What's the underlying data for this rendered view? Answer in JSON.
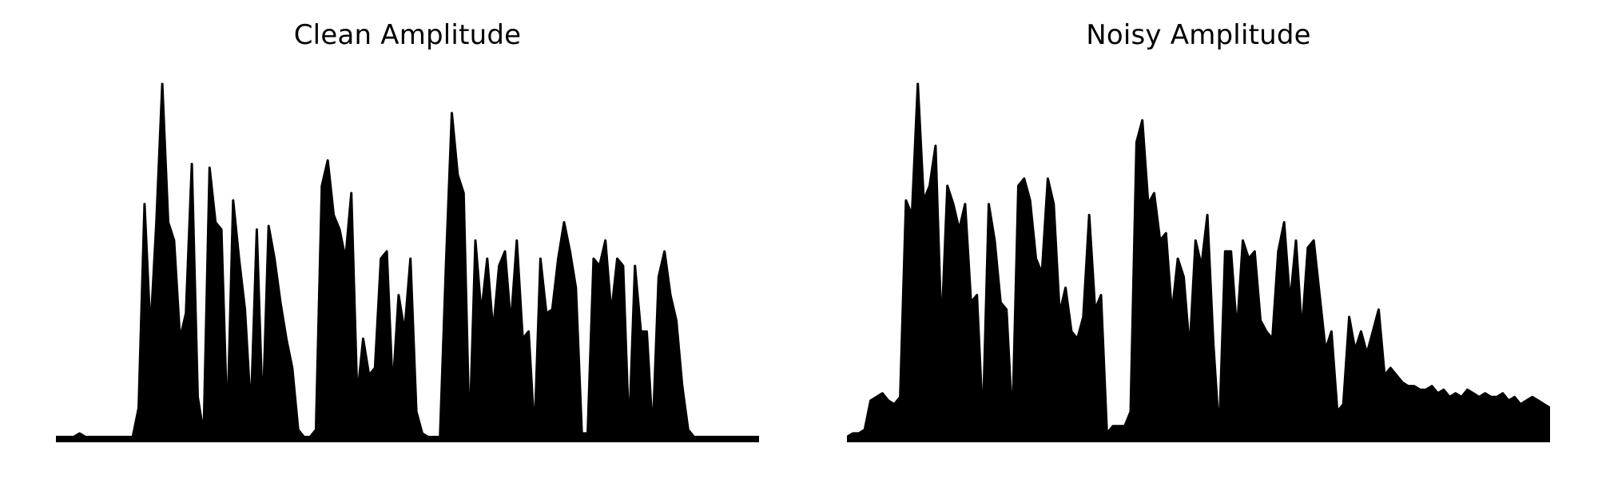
{
  "chart_data": [
    {
      "type": "area",
      "title": "Clean Amplitude",
      "xlabel": "",
      "ylabel": "",
      "axes_visible": false,
      "grid": false,
      "fill_color": "#000000",
      "x_range": [
        0,
        1
      ],
      "ylim": [
        0,
        1
      ],
      "series": [
        {
          "values": [
            0.01,
            0.01,
            0.01,
            0.01,
            0.02,
            0.01,
            0.01,
            0.01,
            0.01,
            0.01,
            0.01,
            0.01,
            0.01,
            0.01,
            0.09,
            0.65,
            0.3,
            0.6,
            0.98,
            0.6,
            0.55,
            0.28,
            0.35,
            0.76,
            0.12,
            0.02,
            0.75,
            0.6,
            0.58,
            0.04,
            0.66,
            0.5,
            0.36,
            0.08,
            0.58,
            0.07,
            0.59,
            0.5,
            0.38,
            0.28,
            0.2,
            0.03,
            0.01,
            0.01,
            0.03,
            0.7,
            0.77,
            0.62,
            0.58,
            0.5,
            0.68,
            0.12,
            0.28,
            0.18,
            0.2,
            0.5,
            0.52,
            0.14,
            0.4,
            0.3,
            0.5,
            0.08,
            0.02,
            0.01,
            0.01,
            0.01,
            0.48,
            0.9,
            0.73,
            0.68,
            0.01,
            0.55,
            0.35,
            0.5,
            0.3,
            0.48,
            0.52,
            0.32,
            0.55,
            0.28,
            0.3,
            0.02,
            0.5,
            0.35,
            0.36,
            0.5,
            0.6,
            0.52,
            0.42,
            0.02,
            0.02,
            0.5,
            0.48,
            0.55,
            0.35,
            0.5,
            0.48,
            0.02,
            0.48,
            0.3,
            0.3,
            0.02,
            0.45,
            0.52,
            0.4,
            0.33,
            0.15,
            0.03,
            0.01,
            0.01,
            0.01,
            0.01,
            0.01,
            0.01,
            0.01,
            0.01,
            0.01,
            0.01,
            0.01,
            0.01
          ]
        }
      ]
    },
    {
      "type": "area",
      "title": "Noisy Amplitude",
      "xlabel": "",
      "ylabel": "",
      "axes_visible": false,
      "grid": false,
      "fill_color": "#000000",
      "x_range": [
        0,
        1
      ],
      "ylim": [
        0,
        1
      ],
      "series": [
        {
          "values": [
            0.01,
            0.02,
            0.02,
            0.03,
            0.11,
            0.12,
            0.13,
            0.11,
            0.1,
            0.12,
            0.66,
            0.62,
            0.98,
            0.66,
            0.7,
            0.81,
            0.3,
            0.7,
            0.65,
            0.58,
            0.65,
            0.38,
            0.4,
            0.05,
            0.65,
            0.55,
            0.38,
            0.36,
            0.05,
            0.7,
            0.72,
            0.66,
            0.5,
            0.46,
            0.72,
            0.65,
            0.35,
            0.42,
            0.3,
            0.28,
            0.34,
            0.62,
            0.36,
            0.4,
            0.02,
            0.04,
            0.04,
            0.04,
            0.08,
            0.82,
            0.88,
            0.65,
            0.68,
            0.55,
            0.57,
            0.35,
            0.5,
            0.45,
            0.25,
            0.55,
            0.48,
            0.62,
            0.27,
            0.02,
            0.52,
            0.52,
            0.3,
            0.55,
            0.5,
            0.52,
            0.33,
            0.3,
            0.28,
            0.52,
            0.6,
            0.38,
            0.55,
            0.3,
            0.53,
            0.55,
            0.4,
            0.25,
            0.3,
            0.08,
            0.1,
            0.34,
            0.25,
            0.3,
            0.24,
            0.3,
            0.36,
            0.18,
            0.2,
            0.18,
            0.16,
            0.15,
            0.15,
            0.14,
            0.14,
            0.15,
            0.13,
            0.14,
            0.12,
            0.13,
            0.12,
            0.14,
            0.13,
            0.12,
            0.13,
            0.12,
            0.12,
            0.13,
            0.11,
            0.12,
            0.1,
            0.11,
            0.12,
            0.11,
            0.1,
            0.09
          ]
        }
      ]
    }
  ]
}
